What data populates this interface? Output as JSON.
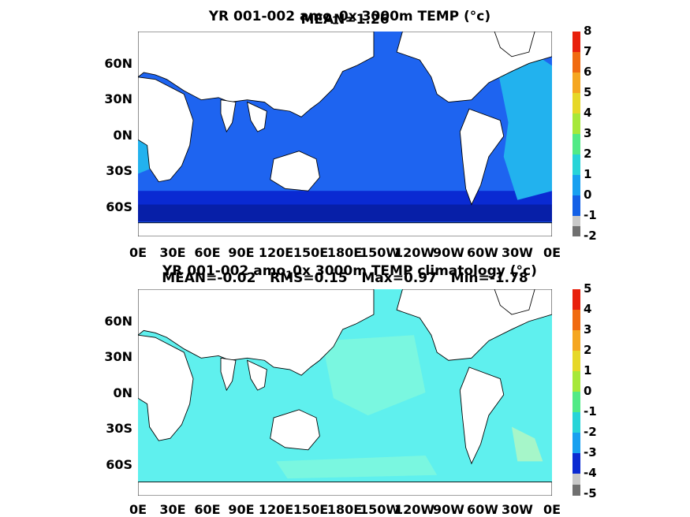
{
  "panels": [
    {
      "title_line1_part1": "YR 001-002 amo",
      "title_sub": "1",
      "title_line1_part2": "0x 3000m TEMP (°c)",
      "title_line2": "MEAN=1.26",
      "lat_labels": [
        "60N",
        "30N",
        "0N",
        "30S",
        "60S"
      ],
      "lon_labels": [
        "0E",
        "30E",
        "60E",
        "90E",
        "120E",
        "150E",
        "180E",
        "150W",
        "120W",
        "90W",
        "60W",
        "30W",
        "0E"
      ],
      "colorbar_labels": [
        "8",
        "7",
        "6",
        "5",
        "4",
        "3",
        "2",
        "1",
        "0",
        "-1",
        "-2"
      ],
      "ocean_color": "#1e64f0",
      "deep_color": "#0a2ad2",
      "shelf_color": "#22b2ee"
    },
    {
      "title_line1_part1": "YR 001-002 amo",
      "title_sub": "1",
      "title_line1_part2": "0x 3000m TEMP climatology (°c)",
      "title_line2": "MEAN=-0.02   RMS=0.15   Max=0.97   Min=-1.78",
      "lat_labels": [
        "60N",
        "30N",
        "0N",
        "30S",
        "60S"
      ],
      "lon_labels": [
        "0E",
        "30E",
        "60E",
        "90E",
        "120E",
        "150E",
        "180E",
        "150W",
        "120W",
        "90W",
        "60W",
        "30W",
        "0E"
      ],
      "colorbar_labels": [
        "5",
        "4",
        "3",
        "2",
        "1",
        "0",
        "-1",
        "-2",
        "-3",
        "-4",
        "-5"
      ],
      "ocean_color": "#5ff0ee",
      "deep_color": "#7af7e0",
      "shelf_color": "#a6f6c9"
    }
  ],
  "colorbar_colors": [
    "#e8200c",
    "#f06a10",
    "#f5a620",
    "#e6d828",
    "#a6e83a",
    "#52ea86",
    "#28d4d8",
    "#18a0f0",
    "#1360e6",
    "#0a2ad2",
    "#0a14a0",
    "#c8c8c8",
    "#707070"
  ]
}
